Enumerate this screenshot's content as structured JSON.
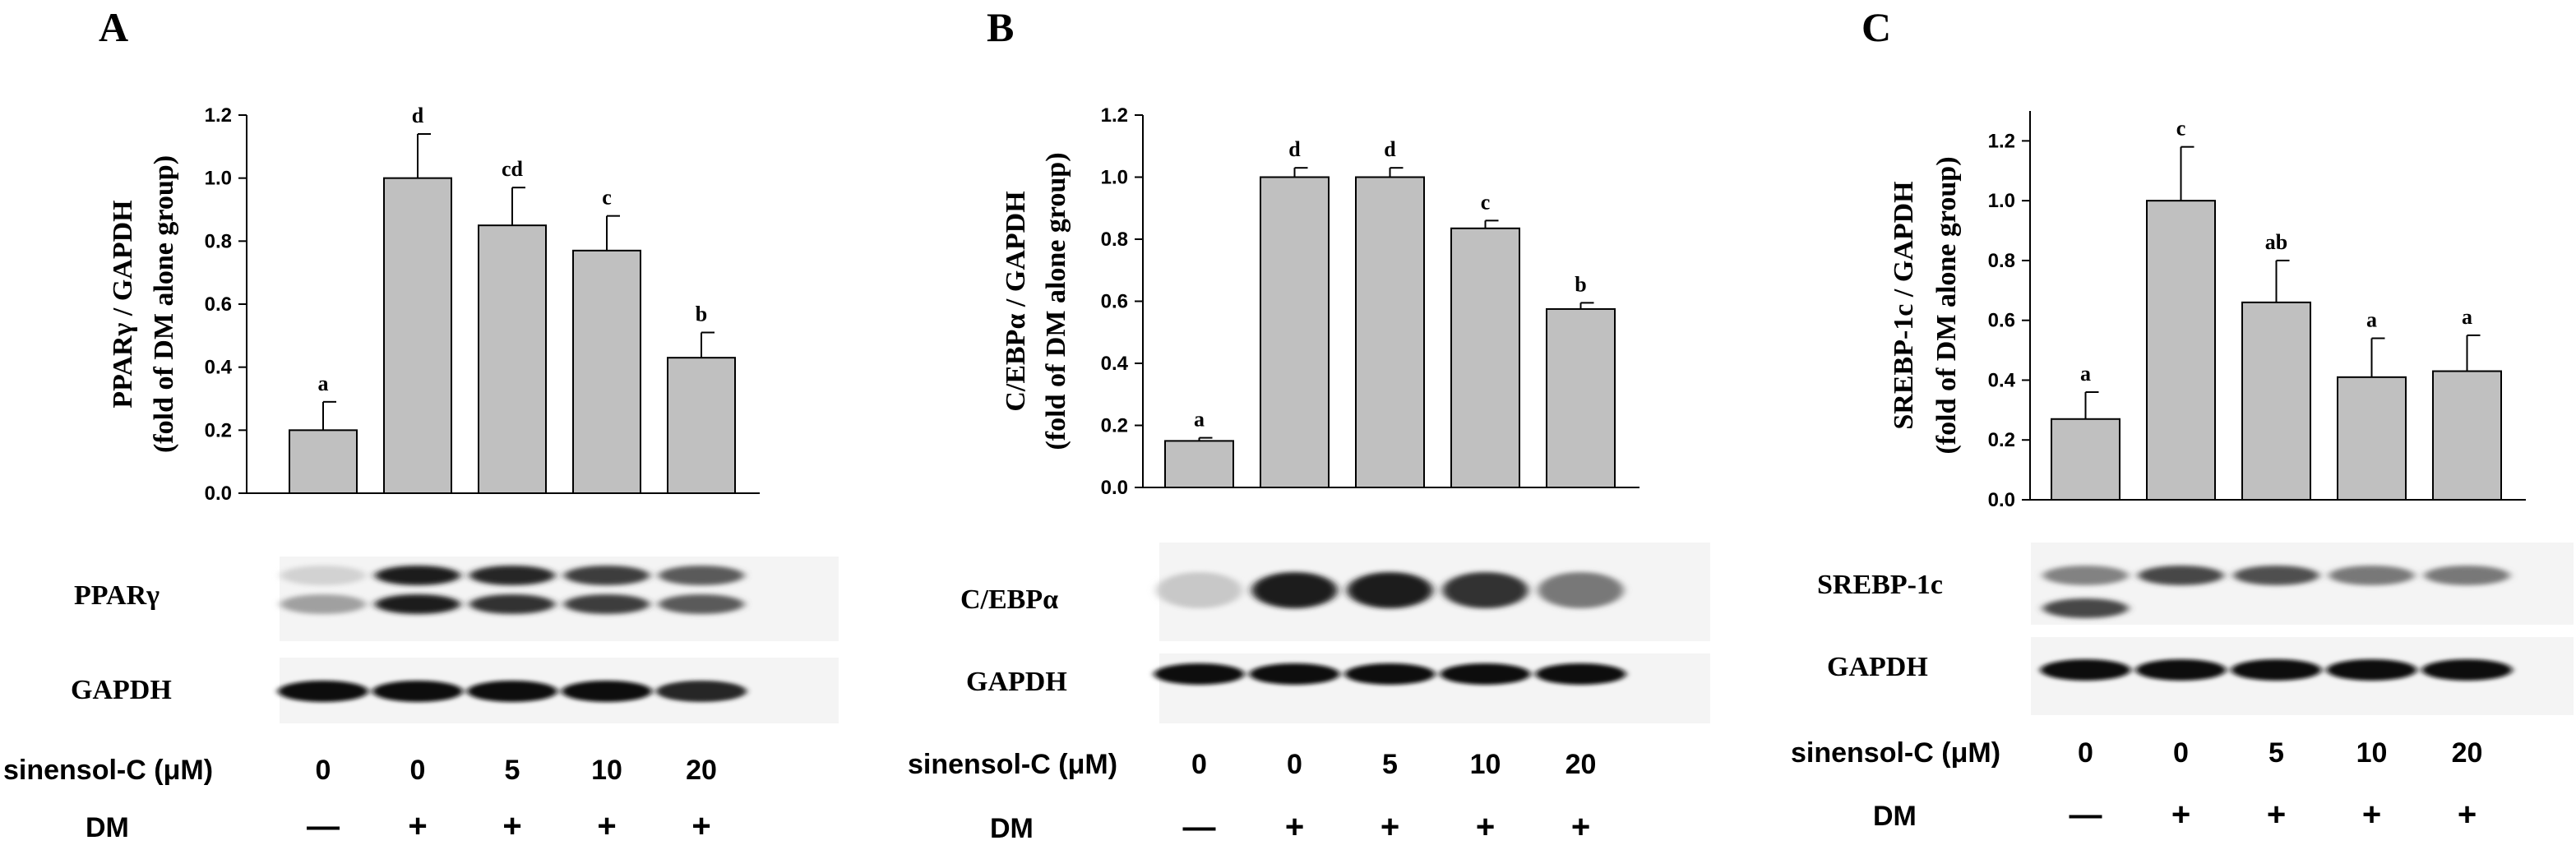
{
  "figure": {
    "panels": [
      {
        "letter": "A",
        "blot_labels": [
          "PPARγ",
          "GAPDH"
        ],
        "treatment_label": "sinensol-C (μM)",
        "doses": [
          "0",
          "0",
          "5",
          "10",
          "20"
        ],
        "dm_label": "DM",
        "dm_signs": [
          "—",
          "+",
          "+",
          "+",
          "+"
        ]
      },
      {
        "letter": "B",
        "blot_labels": [
          "C/EBPα",
          "GAPDH"
        ],
        "treatment_label": "sinensol-C (μM)",
        "doses": [
          "0",
          "0",
          "5",
          "10",
          "20"
        ],
        "dm_label": "DM",
        "dm_signs": [
          "—",
          "+",
          "+",
          "+",
          "+"
        ]
      },
      {
        "letter": "C",
        "blot_labels": [
          "SREBP-1c",
          "GAPDH"
        ],
        "treatment_label": "sinensol-C (μM)",
        "doses": [
          "0",
          "0",
          "5",
          "10",
          "20"
        ],
        "dm_label": "DM",
        "dm_signs": [
          "—",
          "+",
          "+",
          "+",
          "+"
        ]
      }
    ]
  },
  "chart_data": [
    {
      "type": "bar",
      "ylabel": [
        "PPARγ / GAPDH",
        "(fold of DM alone group)"
      ],
      "ylim": [
        0,
        1.2
      ],
      "yticks": [
        "0.0",
        "0.2",
        "0.4",
        "0.6",
        "0.8",
        "1.0",
        "1.2"
      ],
      "values": [
        0.2,
        1.0,
        0.85,
        0.77,
        0.43
      ],
      "errors": [
        0.09,
        0.14,
        0.12,
        0.11,
        0.08
      ],
      "letters": [
        "a",
        "d",
        "cd",
        "c",
        "b"
      ],
      "bar_color": "#c0c0c0"
    },
    {
      "type": "bar",
      "ylabel": [
        "C/EBPα / GAPDH",
        "(fold of DM alone group)"
      ],
      "ylim": [
        0,
        1.2
      ],
      "yticks": [
        "0.0",
        "0.2",
        "0.4",
        "0.6",
        "0.8",
        "1.0",
        "1.2"
      ],
      "values": [
        0.15,
        1.0,
        1.0,
        0.835,
        0.575
      ],
      "errors": [
        0.01,
        0.03,
        0.03,
        0.025,
        0.02
      ],
      "letters": [
        "a",
        "d",
        "d",
        "c",
        "b"
      ],
      "bar_color": "#c0c0c0"
    },
    {
      "type": "bar",
      "ylabel": [
        "SREBP-1c / GAPDH",
        "(fold of DM alone group)"
      ],
      "ylim": [
        0,
        1.3
      ],
      "yticks": [
        "0.0",
        "0.2",
        "0.4",
        "0.6",
        "0.8",
        "1.0",
        "1.2"
      ],
      "values": [
        0.27,
        1.0,
        0.66,
        0.41,
        0.43
      ],
      "errors": [
        0.09,
        0.18,
        0.14,
        0.13,
        0.12
      ],
      "letters": [
        "a",
        "c",
        "ab",
        "a",
        "a"
      ],
      "bar_color": "#c0c0c0"
    }
  ]
}
